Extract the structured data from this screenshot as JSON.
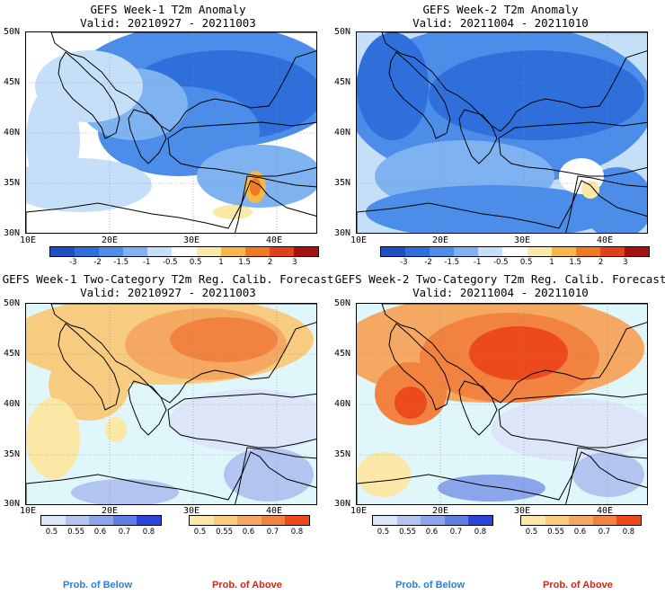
{
  "panels": [
    {
      "title1": "GEFS Week-1 T2m Anomaly",
      "title2": "Valid: 20210927 - 20211003"
    },
    {
      "title1": "GEFS Week-2 T2m Anomaly",
      "title2": "Valid: 20211004 - 20211010"
    },
    {
      "title1": "GEFS Week-1 Two-Category T2m Reg. Calib. Forecast",
      "title2": "Valid: 20210927 - 20211003"
    },
    {
      "title1": "GEFS Week-2 Two-Category T2m Reg. Calib. Forecast",
      "title2": "Valid: 20211004 - 20211010"
    }
  ],
  "lat_labels": [
    "50N",
    "45N",
    "40N",
    "35N",
    "30N"
  ],
  "lon_labels": [
    "10E",
    "20E",
    "30E",
    "40E"
  ],
  "anomaly_scale": {
    "labels": [
      "-3",
      "-2",
      "-1.5",
      "-1",
      "-0.5",
      "0.5",
      "1",
      "1.5",
      "2",
      "3"
    ],
    "colors": [
      "#1c4fc4",
      "#2f6fdc",
      "#4b8de8",
      "#7fb2f0",
      "#c6dff8",
      "#ffffff",
      "#fbe7a6",
      "#f6b64a",
      "#f07a22",
      "#e2421a",
      "#a8110e"
    ]
  },
  "prob_below_scale": {
    "labels": [
      "0.5",
      "0.55",
      "0.6",
      "0.7",
      "0.8"
    ],
    "colors": [
      "#dde6f9",
      "#b2c5f1",
      "#8aa5ea",
      "#5f7fe4",
      "#2b45dc"
    ]
  },
  "prob_above_scale": {
    "labels": [
      "0.5",
      "0.55",
      "0.6",
      "0.7",
      "0.8"
    ],
    "colors": [
      "#fbe7a6",
      "#f8cc80",
      "#f5a862",
      "#f1823f",
      "#ec4a1c"
    ]
  },
  "colors": {
    "land_gray": "#ffffff",
    "sea_prob": "#dff6fb",
    "prob_below_text": "#2a7ee0",
    "prob_above_text": "#e02010"
  },
  "footer": [
    {
      "below": "Prob. of Below",
      "above": "Prob. of Above"
    },
    {
      "below": "Prob. of Below",
      "above": "Prob. of Above"
    }
  ]
}
